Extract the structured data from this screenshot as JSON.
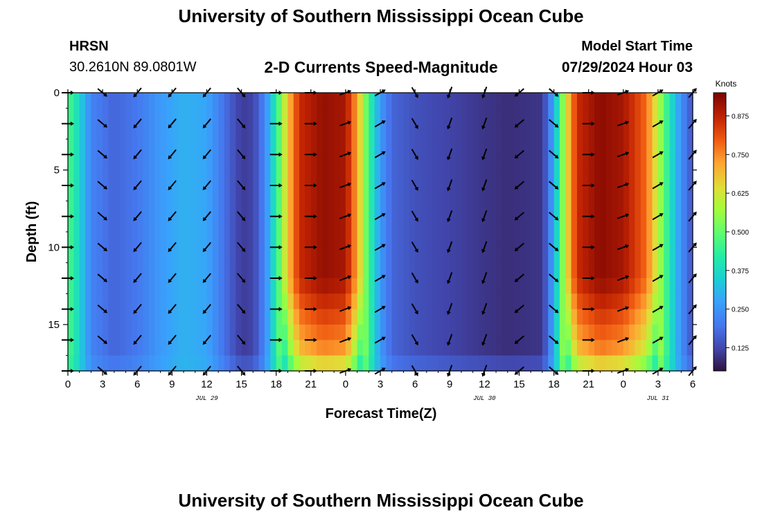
{
  "header": {
    "title": "University of Southern Mississippi Ocean Cube",
    "station": "HRSN",
    "coords": "30.2610N  89.0801W",
    "subtitle": "2-D Currents Speed-Magnitude",
    "start_label": "Model Start Time",
    "start_value": "07/29/2024 Hour 03",
    "footer_title": "University of Southern Mississippi Ocean Cube"
  },
  "chart_data": {
    "type": "heatmap",
    "title": "2-D Currents Speed-Magnitude",
    "xlabel": "Forecast Time(Z)",
    "ylabel": "Depth (ft)",
    "x_tick_labels": [
      "0",
      "3",
      "6",
      "9",
      "12",
      "15",
      "18",
      "21",
      "0",
      "3",
      "6",
      "9",
      "12",
      "15",
      "18",
      "21",
      "0",
      "3",
      "6"
    ],
    "x_range_hours": [
      0,
      54
    ],
    "y_range_ft": [
      0,
      18
    ],
    "y_ticks": [
      0,
      5,
      10,
      15
    ],
    "date_labels": [
      {
        "label": "JUL 29",
        "hour": 12
      },
      {
        "label": "JUL 30",
        "hour": 36
      },
      {
        "label": "JUL 31",
        "hour": 51
      }
    ],
    "colorbar": {
      "title": "Knots",
      "ticks": [
        "0.125",
        "0.250",
        "0.375",
        "0.500",
        "0.625",
        "0.750",
        "0.875"
      ],
      "range": [
        0.05,
        0.95
      ]
    },
    "speed_profile_knots": [
      {
        "hour": 0,
        "speed": 0.48
      },
      {
        "hour": 1,
        "speed": 0.36
      },
      {
        "hour": 2,
        "speed": 0.22
      },
      {
        "hour": 4,
        "speed": 0.17
      },
      {
        "hour": 6,
        "speed": 0.2
      },
      {
        "hour": 8,
        "speed": 0.26
      },
      {
        "hour": 10,
        "speed": 0.3
      },
      {
        "hour": 12,
        "speed": 0.28
      },
      {
        "hour": 13,
        "speed": 0.22
      },
      {
        "hour": 14,
        "speed": 0.16
      },
      {
        "hour": 15,
        "speed": 0.11
      },
      {
        "hour": 16,
        "speed": 0.12
      },
      {
        "hour": 17,
        "speed": 0.22
      },
      {
        "hour": 18,
        "speed": 0.42
      },
      {
        "hour": 19,
        "speed": 0.68
      },
      {
        "hour": 20,
        "speed": 0.86
      },
      {
        "hour": 22,
        "speed": 0.92
      },
      {
        "hour": 24,
        "speed": 0.9
      },
      {
        "hour": 25,
        "speed": 0.72
      },
      {
        "hour": 26,
        "speed": 0.45
      },
      {
        "hour": 27,
        "speed": 0.26
      },
      {
        "hour": 28,
        "speed": 0.17
      },
      {
        "hour": 30,
        "speed": 0.14
      },
      {
        "hour": 33,
        "speed": 0.12
      },
      {
        "hour": 36,
        "speed": 0.1
      },
      {
        "hour": 38,
        "speed": 0.09
      },
      {
        "hour": 41,
        "speed": 0.1
      },
      {
        "hour": 42,
        "speed": 0.28
      },
      {
        "hour": 43,
        "speed": 0.62
      },
      {
        "hour": 44,
        "speed": 0.86
      },
      {
        "hour": 46,
        "speed": 0.93
      },
      {
        "hour": 48,
        "speed": 0.9
      },
      {
        "hour": 50,
        "speed": 0.78
      },
      {
        "hour": 51,
        "speed": 0.6
      },
      {
        "hour": 52,
        "speed": 0.4
      },
      {
        "hour": 53,
        "speed": 0.24
      },
      {
        "hour": 54,
        "speed": 0.14
      }
    ],
    "arrow_times_hours": [
      0,
      3,
      6,
      9,
      12,
      15,
      18,
      21,
      24,
      27,
      30,
      33,
      36,
      39,
      42,
      45,
      48,
      51,
      54
    ],
    "arrow_depths_ft": [
      0,
      2,
      4,
      6,
      8,
      10,
      12,
      14,
      16,
      18
    ],
    "arrow_direction_deg_by_time": [
      90,
      130,
      220,
      220,
      220,
      140,
      90,
      90,
      70,
      60,
      150,
      200,
      200,
      230,
      130,
      90,
      70,
      60,
      40
    ]
  }
}
